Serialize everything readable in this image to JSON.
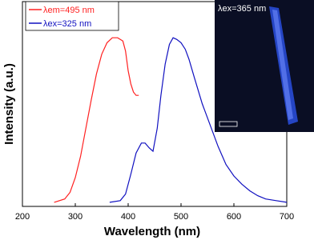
{
  "chart_data": {
    "type": "line",
    "xlabel": "Wavelength (nm)",
    "ylabel": "Intensity (a.u.)",
    "xlim": [
      200,
      700
    ],
    "xticks": [
      200,
      300,
      400,
      500,
      600,
      700
    ],
    "ylim": [
      -0.025,
      1.22
    ],
    "legend": "upper left",
    "inset_label": "λex=365 nm",
    "series": [
      {
        "name": "λem=495 nm",
        "color": "#ff2020",
        "x": [
          260,
          280,
          290,
          300,
          310,
          320,
          330,
          340,
          350,
          360,
          370,
          380,
          390,
          395,
          400,
          405,
          410,
          415,
          420
        ],
        "values": [
          0.0,
          0.02,
          0.06,
          0.15,
          0.28,
          0.45,
          0.62,
          0.78,
          0.9,
          0.97,
          1.0,
          1.0,
          0.98,
          0.92,
          0.8,
          0.72,
          0.67,
          0.65,
          0.65
        ]
      },
      {
        "name": "λex=325 nm",
        "color": "#1010c0",
        "x": [
          365,
          385,
          395,
          405,
          415,
          425,
          432,
          440,
          447,
          455,
          462,
          470,
          478,
          485,
          492,
          500,
          508,
          515,
          525,
          540,
          555,
          570,
          585,
          600,
          615,
          630,
          645,
          660,
          680,
          700
        ],
        "values": [
          0.0,
          0.01,
          0.05,
          0.17,
          0.3,
          0.36,
          0.36,
          0.33,
          0.31,
          0.45,
          0.65,
          0.84,
          0.96,
          1.0,
          0.99,
          0.97,
          0.93,
          0.87,
          0.76,
          0.6,
          0.47,
          0.34,
          0.23,
          0.16,
          0.11,
          0.07,
          0.04,
          0.02,
          0.01,
          0.0
        ]
      }
    ]
  }
}
